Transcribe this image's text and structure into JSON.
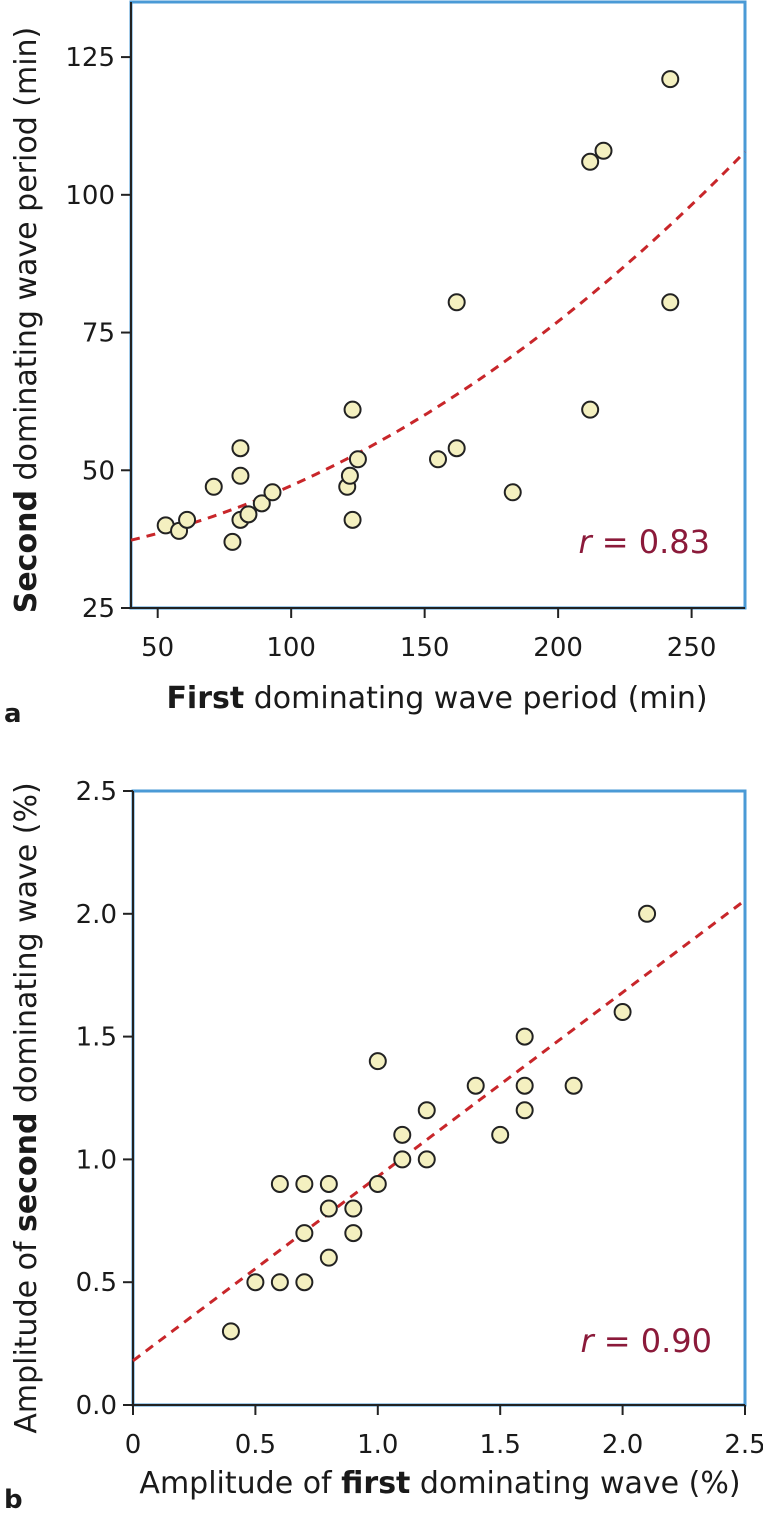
{
  "chart_data": [
    {
      "panel": "a",
      "type": "scatter",
      "xlabel_bold": "First",
      "xlabel_rest": " dominating wave period (min)",
      "ylabel_bold": "Second",
      "ylabel_rest": " dominating wave period (min)",
      "xlim": [
        40,
        270
      ],
      "ylim": [
        25,
        135
      ],
      "xticks": [
        50,
        100,
        150,
        200,
        250
      ],
      "yticks": [
        25,
        50,
        75,
        100,
        125
      ],
      "ytick_labels": [
        "25",
        "50",
        "75",
        "100",
        "125"
      ],
      "xtick_labels": [
        "50",
        "100",
        "150",
        "200",
        "250"
      ],
      "annotation_r": "r",
      "annotation_val": " = 0.83",
      "trend": {
        "type": "quadratic",
        "x_from": 40,
        "x_to": 270,
        "coef": [
          34.05,
          0.0483,
          0.000833
        ]
      },
      "points": [
        {
          "x": 53,
          "y": 40
        },
        {
          "x": 58,
          "y": 39
        },
        {
          "x": 61,
          "y": 41
        },
        {
          "x": 71,
          "y": 47
        },
        {
          "x": 78,
          "y": 37
        },
        {
          "x": 81,
          "y": 54
        },
        {
          "x": 81,
          "y": 49
        },
        {
          "x": 81,
          "y": 41
        },
        {
          "x": 84,
          "y": 42
        },
        {
          "x": 89,
          "y": 44
        },
        {
          "x": 93,
          "y": 46
        },
        {
          "x": 121,
          "y": 47
        },
        {
          "x": 122,
          "y": 49
        },
        {
          "x": 123,
          "y": 61
        },
        {
          "x": 123,
          "y": 41
        },
        {
          "x": 125,
          "y": 52
        },
        {
          "x": 155,
          "y": 52
        },
        {
          "x": 162,
          "y": 80.5
        },
        {
          "x": 162,
          "y": 54
        },
        {
          "x": 183,
          "y": 46
        },
        {
          "x": 212,
          "y": 106
        },
        {
          "x": 212,
          "y": 61
        },
        {
          "x": 217,
          "y": 108
        },
        {
          "x": 242,
          "y": 121
        },
        {
          "x": 242,
          "y": 80.5
        }
      ]
    },
    {
      "panel": "b",
      "type": "scatter",
      "xlabel_pre": "Amplitude of ",
      "xlabel_bold": "first",
      "xlabel_rest": " dominating wave (%)",
      "ylabel_pre": "Amplitude of ",
      "ylabel_bold": "second",
      "ylabel_rest": " dominating wave (%)",
      "xlim": [
        0,
        2.5
      ],
      "ylim": [
        0,
        2.5
      ],
      "xticks": [
        0,
        0.5,
        1.0,
        1.5,
        2.0,
        2.5
      ],
      "yticks": [
        0,
        0.5,
        1.0,
        1.5,
        2.0,
        2.5
      ],
      "xtick_labels": [
        "0",
        "0.5",
        "1.0",
        "1.5",
        "2.0",
        "2.5"
      ],
      "ytick_labels": [
        "0.0",
        "0.5",
        "1.0",
        "1.5",
        "2.0",
        "2.5"
      ],
      "annotation_r": "r",
      "annotation_val": " = 0.90",
      "trend": {
        "type": "linear",
        "x_from": 0,
        "x_to": 2.5,
        "coef": [
          0.18,
          0.75
        ]
      },
      "points": [
        {
          "x": 0.4,
          "y": 0.3
        },
        {
          "x": 0.5,
          "y": 0.5
        },
        {
          "x": 0.6,
          "y": 0.9
        },
        {
          "x": 0.6,
          "y": 0.5
        },
        {
          "x": 0.7,
          "y": 0.9
        },
        {
          "x": 0.7,
          "y": 0.7
        },
        {
          "x": 0.7,
          "y": 0.5
        },
        {
          "x": 0.8,
          "y": 0.9
        },
        {
          "x": 0.8,
          "y": 0.8
        },
        {
          "x": 0.8,
          "y": 0.6
        },
        {
          "x": 0.9,
          "y": 0.8
        },
        {
          "x": 0.9,
          "y": 0.7
        },
        {
          "x": 1.0,
          "y": 1.4
        },
        {
          "x": 1.0,
          "y": 0.9
        },
        {
          "x": 1.1,
          "y": 1.1
        },
        {
          "x": 1.1,
          "y": 1.0
        },
        {
          "x": 1.2,
          "y": 1.2
        },
        {
          "x": 1.2,
          "y": 1.0
        },
        {
          "x": 1.4,
          "y": 1.3
        },
        {
          "x": 1.5,
          "y": 1.1
        },
        {
          "x": 1.6,
          "y": 1.5
        },
        {
          "x": 1.6,
          "y": 1.3
        },
        {
          "x": 1.6,
          "y": 1.2
        },
        {
          "x": 1.8,
          "y": 1.3
        },
        {
          "x": 2.0,
          "y": 1.6
        },
        {
          "x": 2.1,
          "y": 2.0
        }
      ]
    }
  ]
}
